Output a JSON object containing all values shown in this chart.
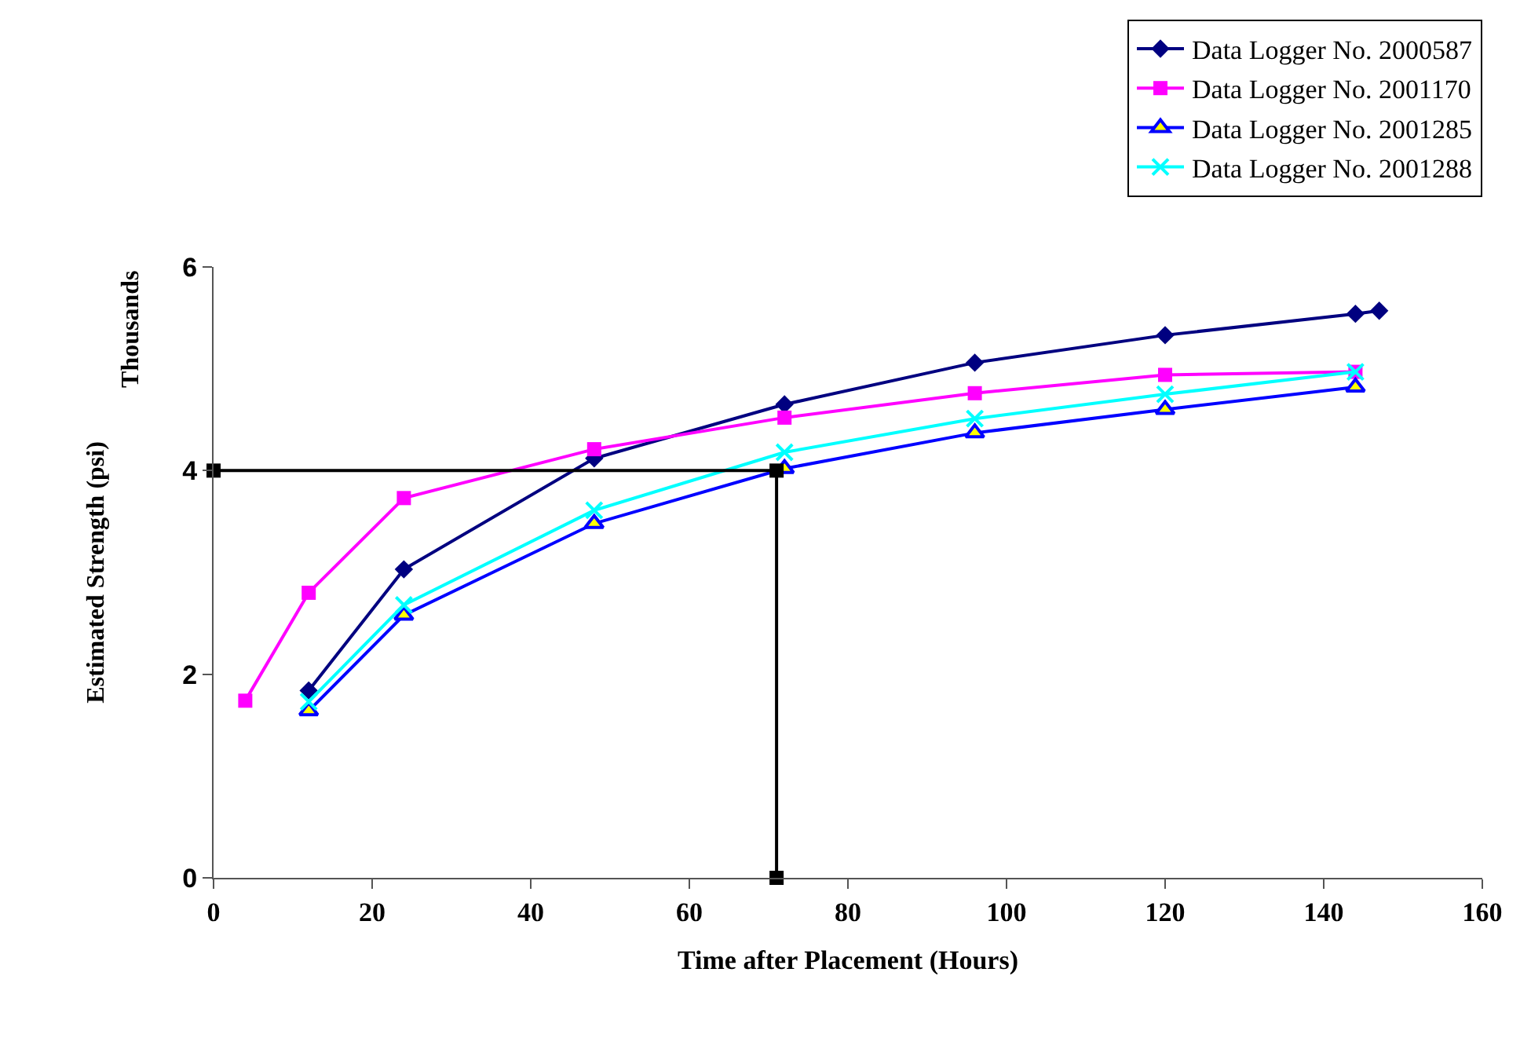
{
  "chart_data": {
    "type": "line",
    "xlabel": "Time after Placement (Hours)",
    "ylabel": "Estimated Strength (psi)",
    "annotations": [
      "Thousands"
    ],
    "xlim": [
      0,
      160
    ],
    "xticks": [
      0,
      20,
      40,
      60,
      80,
      100,
      120,
      140,
      160
    ],
    "ylim": [
      0,
      6
    ],
    "yticks": [
      0,
      2,
      4,
      6
    ],
    "legend": "top right",
    "series": [
      {
        "name": "Data Logger No. 2000587",
        "color": "#000080",
        "marker": "diamond",
        "x": [
          12,
          24,
          48,
          72,
          96,
          120,
          144,
          147
        ],
        "values": [
          1.84,
          3.03,
          4.12,
          4.65,
          5.06,
          5.33,
          5.54,
          5.57
        ]
      },
      {
        "name": "Data Logger No. 2001170",
        "color": "#ff00ff",
        "marker": "square",
        "x": [
          4,
          12,
          24,
          48,
          72,
          96,
          120,
          144
        ],
        "values": [
          1.74,
          2.8,
          3.73,
          4.21,
          4.52,
          4.76,
          4.94,
          4.97
        ]
      },
      {
        "name": "Data Logger No. 2001285",
        "color": "#0000ff",
        "marker": "triangle",
        "x": [
          12,
          24,
          48,
          72,
          96,
          120,
          144
        ],
        "values": [
          1.64,
          2.58,
          3.48,
          4.02,
          4.37,
          4.6,
          4.82
        ]
      },
      {
        "name": "Data Logger No. 2001288",
        "color": "#00ffff",
        "marker": "cross",
        "x": [
          12,
          24,
          48,
          72,
          96,
          120,
          144
        ],
        "values": [
          1.73,
          2.68,
          3.61,
          4.18,
          4.51,
          4.75,
          4.97
        ]
      },
      {
        "color": "#000000",
        "marker": "square",
        "x": [
          0,
          71,
          71
        ],
        "values": [
          4,
          4,
          0
        ]
      }
    ]
  }
}
